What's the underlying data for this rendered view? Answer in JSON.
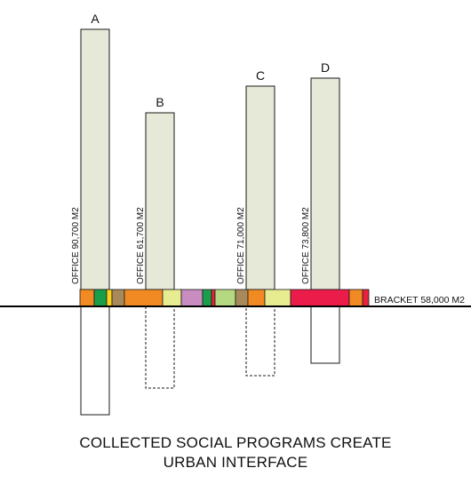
{
  "towers": [
    {
      "id": "A",
      "label": "A",
      "office_label": "OFFICE 90,700 M2",
      "office_m2": 90700,
      "basement": "solid"
    },
    {
      "id": "B",
      "label": "B",
      "office_label": "OFFICE 61,700 M2",
      "office_m2": 61700,
      "basement": "dashed"
    },
    {
      "id": "C",
      "label": "C",
      "office_label": "OFFICE 71,000 M2",
      "office_m2": 71000,
      "basement": "dashed"
    },
    {
      "id": "D",
      "label": "D",
      "office_label": "OFFICE 73,800 M2",
      "office_m2": 73800,
      "basement": "solid"
    }
  ],
  "bracket": {
    "label": "BRACKET 58,000 M2",
    "area_m2": 58000,
    "program_colors": [
      "#f28a24",
      "#1a9e4a",
      "#ffd21a",
      "#a88a5a",
      "#f28a24",
      "#e8ec90",
      "#c98cc0",
      "#1a9e4a",
      "#e8223c",
      "#b5d980",
      "#a88a5a",
      "#f28a24",
      "#e8ec90",
      "#ec1c4a",
      "#f28a24",
      "#e8223c"
    ]
  },
  "colors": {
    "tower_fill": "#e6e8d8",
    "outline": "#1a1a1a",
    "ground": "#000000",
    "basement_fill": "#ffffff"
  },
  "caption": {
    "line1": "COLLECTED SOCIAL PROGRAMS CREATE",
    "line2": "URBAN INTERFACE"
  }
}
